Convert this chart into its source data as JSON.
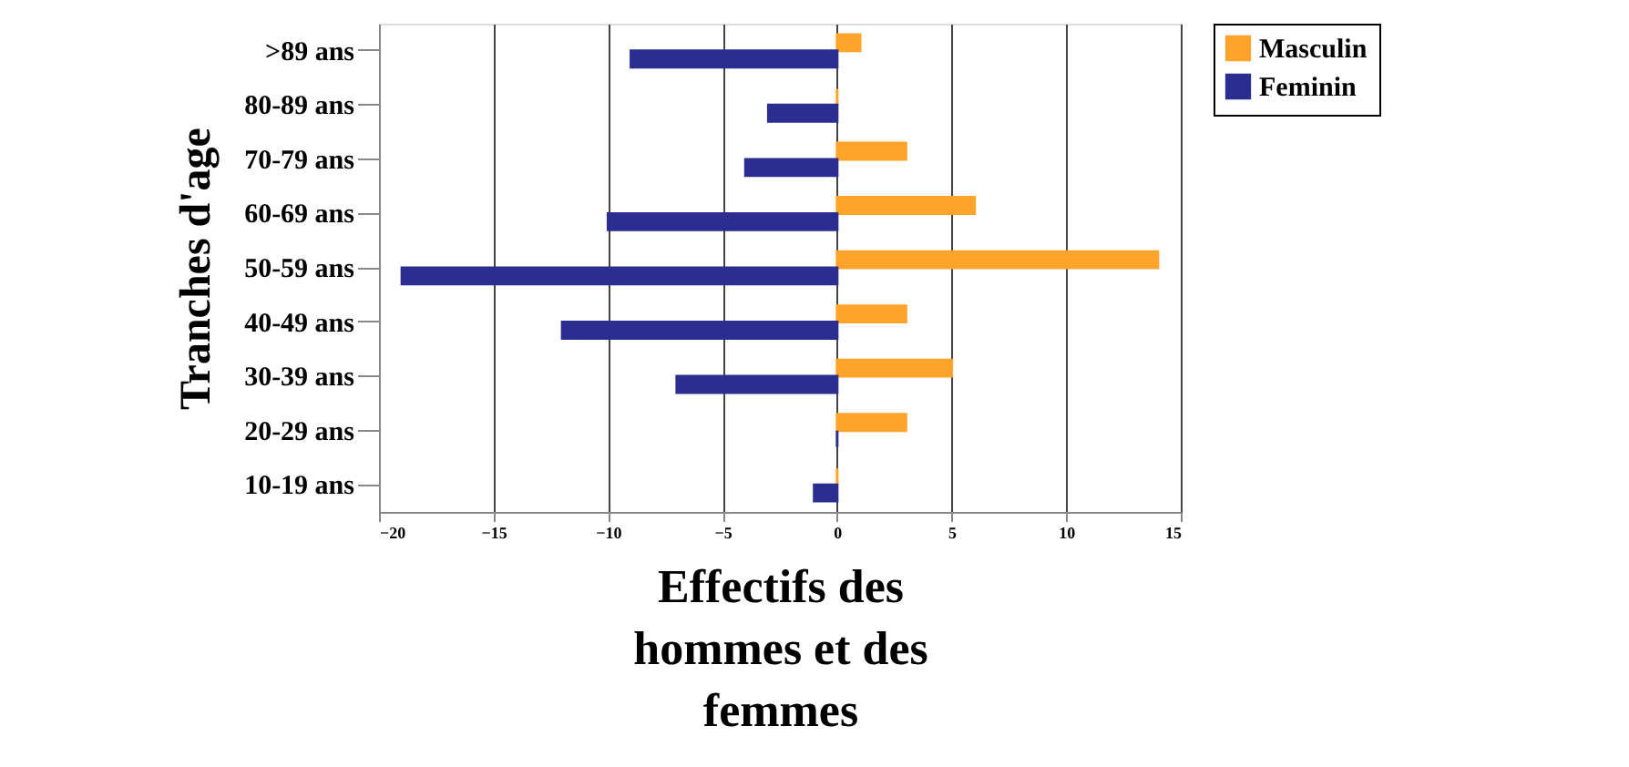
{
  "chart_data": {
    "type": "bar",
    "orientation": "horizontal",
    "xlabel": "Effectifs des hommes et des femmes",
    "ylabel": "Tranches d'age",
    "categories": [
      ">89 ans",
      "80-89 ans",
      "70-79 ans",
      "60-69 ans",
      "50-59 ans",
      "40-49 ans",
      "30-39 ans",
      "20-29 ans",
      "10-19 ans"
    ],
    "series": [
      {
        "name": "Masculin",
        "color": "#ffa42b",
        "values": [
          1,
          0,
          3,
          6,
          14,
          3,
          5,
          3,
          0
        ]
      },
      {
        "name": "Feminin",
        "color": "#2b2e90",
        "values": [
          -9,
          -3,
          -4,
          -10,
          -19,
          -12,
          -7,
          0,
          -1
        ]
      }
    ],
    "xlim": [
      -20,
      15
    ],
    "xticks": [
      -20,
      -15,
      -10,
      -5,
      0,
      5,
      10,
      15
    ],
    "grid": "x",
    "legend": "right"
  }
}
